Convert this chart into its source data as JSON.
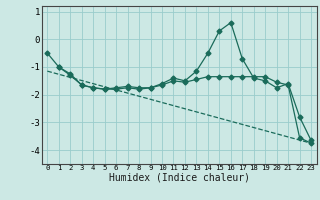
{
  "xlabel": "Humidex (Indice chaleur)",
  "background_color": "#cce8e4",
  "grid_color": "#99cccc",
  "line_color": "#1a6b5a",
  "xlim": [
    -0.5,
    23.5
  ],
  "ylim": [
    -4.5,
    1.2
  ],
  "xticks": [
    0,
    1,
    2,
    3,
    4,
    5,
    6,
    7,
    8,
    9,
    10,
    11,
    12,
    13,
    14,
    15,
    16,
    17,
    18,
    19,
    20,
    21,
    22,
    23
  ],
  "yticks": [
    -4,
    -3,
    -2,
    -1,
    0,
    1
  ],
  "series1_x": [
    0,
    1,
    2,
    3,
    4,
    5,
    6,
    7,
    8,
    9,
    10,
    11,
    12,
    13,
    14,
    15,
    16,
    17,
    18,
    19,
    20,
    21,
    22,
    23
  ],
  "series1_y": [
    -0.5,
    -1.0,
    -1.3,
    -1.65,
    -1.75,
    -1.8,
    -1.8,
    -1.75,
    -1.8,
    -1.75,
    -1.6,
    -1.4,
    -1.5,
    -1.15,
    -0.5,
    0.3,
    0.6,
    -0.7,
    -1.4,
    -1.5,
    -1.75,
    -1.6,
    -2.8,
    -3.65
  ],
  "series2_x": [
    1,
    2,
    3,
    4,
    5,
    6,
    7,
    8,
    9,
    10,
    11,
    12,
    13,
    14,
    15,
    16,
    17,
    18,
    19,
    20,
    21,
    22,
    23
  ],
  "series2_y": [
    -1.0,
    -1.25,
    -1.65,
    -1.75,
    -1.8,
    -1.75,
    -1.7,
    -1.75,
    -1.75,
    -1.65,
    -1.5,
    -1.55,
    -1.45,
    -1.35,
    -1.35,
    -1.35,
    -1.35,
    -1.35,
    -1.35,
    -1.55,
    -1.65,
    -3.55,
    -3.75
  ],
  "series3_x": [
    0,
    23
  ],
  "series3_y": [
    -1.15,
    -3.75
  ]
}
